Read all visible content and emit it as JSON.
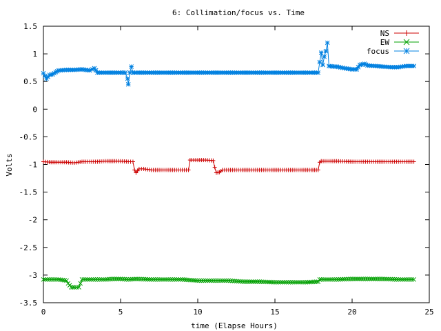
{
  "chart_data": {
    "type": "line",
    "title": "6: Collimation/focus vs. Time",
    "xlabel": "time (Elapse Hours)",
    "ylabel": "Volts",
    "xlim": [
      0,
      25
    ],
    "ylim": [
      -3.5,
      1.5
    ],
    "x_ticks": [
      0,
      5,
      10,
      15,
      20,
      25
    ],
    "x_tick_labels": [
      "0",
      "5",
      "10",
      "15",
      "20",
      "25"
    ],
    "y_ticks": [
      1.5,
      1,
      0.5,
      0,
      -0.5,
      -1,
      -1.5,
      -2,
      -2.5,
      -3,
      -3.5
    ],
    "y_tick_labels": [
      "1.5",
      "1",
      "0.5",
      "0",
      "-0.5",
      "-1",
      "-1.5",
      "-2",
      "-2.5",
      "-3",
      "-3.5"
    ],
    "grid": false,
    "legend_position": "top-right",
    "series": [
      {
        "name": "NS",
        "color": "#cc0000",
        "marker": "plus",
        "x": [
          0,
          0.5,
          1,
          1.5,
          2,
          2.5,
          3,
          3.5,
          4,
          4.5,
          5,
          5.5,
          5.8,
          5.9,
          6,
          6.2,
          6.5,
          7,
          8,
          9,
          9.4,
          9.5,
          9.6,
          10,
          10.5,
          11,
          11.1,
          11.2,
          11.4,
          11.6,
          12,
          13,
          14,
          15,
          16,
          17,
          17.8,
          17.9,
          18,
          18.5,
          19,
          20,
          21,
          22,
          23,
          24
        ],
        "y": [
          -0.95,
          -0.96,
          -0.96,
          -0.96,
          -0.97,
          -0.95,
          -0.95,
          -0.95,
          -0.94,
          -0.94,
          -0.94,
          -0.95,
          -0.95,
          -1.1,
          -1.15,
          -1.08,
          -1.08,
          -1.1,
          -1.1,
          -1.1,
          -1.1,
          -0.92,
          -0.92,
          -0.92,
          -0.92,
          -0.93,
          -1.05,
          -1.15,
          -1.14,
          -1.1,
          -1.1,
          -1.1,
          -1.1,
          -1.1,
          -1.1,
          -1.1,
          -1.1,
          -0.96,
          -0.94,
          -0.94,
          -0.94,
          -0.95,
          -0.95,
          -0.95,
          -0.95,
          -0.95
        ]
      },
      {
        "name": "EW",
        "color": "#00a000",
        "marker": "cross",
        "x": [
          0,
          0.5,
          1,
          1.5,
          1.6,
          1.8,
          2,
          2.3,
          2.4,
          2.5,
          3,
          3.5,
          4,
          4.5,
          5,
          5.5,
          6,
          7,
          8,
          9,
          10,
          11,
          12,
          13,
          14,
          15,
          16,
          17,
          17.8,
          17.9,
          18,
          19,
          20,
          21,
          22,
          23,
          24
        ],
        "y": [
          -3.08,
          -3.08,
          -3.08,
          -3.1,
          -3.15,
          -3.22,
          -3.22,
          -3.22,
          -3.15,
          -3.08,
          -3.08,
          -3.08,
          -3.08,
          -3.07,
          -3.07,
          -3.08,
          -3.07,
          -3.08,
          -3.08,
          -3.08,
          -3.1,
          -3.1,
          -3.1,
          -3.12,
          -3.12,
          -3.13,
          -3.13,
          -3.13,
          -3.12,
          -3.08,
          -3.08,
          -3.08,
          -3.07,
          -3.07,
          -3.07,
          -3.08,
          -3.08
        ]
      },
      {
        "name": "focus",
        "color": "#0080e0",
        "marker": "star",
        "x": [
          0,
          0.2,
          0.4,
          0.6,
          0.8,
          1,
          1.5,
          2,
          2.5,
          3,
          3.3,
          3.5,
          4,
          4.5,
          5,
          5.3,
          5.45,
          5.5,
          5.6,
          5.7,
          5.8,
          6,
          7,
          8,
          9,
          10,
          11,
          12,
          13,
          14,
          15,
          16,
          17,
          17.8,
          17.9,
          18,
          18.1,
          18.2,
          18.3,
          18.4,
          18.5,
          18.8,
          19,
          19.5,
          20,
          20.3,
          20.5,
          20.8,
          21,
          21.5,
          22,
          22.5,
          23,
          23.5,
          24
        ],
        "y": [
          0.65,
          0.55,
          0.62,
          0.63,
          0.67,
          0.7,
          0.71,
          0.71,
          0.72,
          0.7,
          0.74,
          0.66,
          0.66,
          0.66,
          0.66,
          0.66,
          0.55,
          0.45,
          0.66,
          0.77,
          0.66,
          0.66,
          0.66,
          0.66,
          0.66,
          0.66,
          0.66,
          0.66,
          0.66,
          0.66,
          0.66,
          0.66,
          0.66,
          0.66,
          0.85,
          1.02,
          0.8,
          0.95,
          1.05,
          1.2,
          0.78,
          0.77,
          0.77,
          0.74,
          0.72,
          0.72,
          0.8,
          0.82,
          0.79,
          0.78,
          0.77,
          0.76,
          0.76,
          0.78,
          0.78
        ]
      }
    ]
  }
}
